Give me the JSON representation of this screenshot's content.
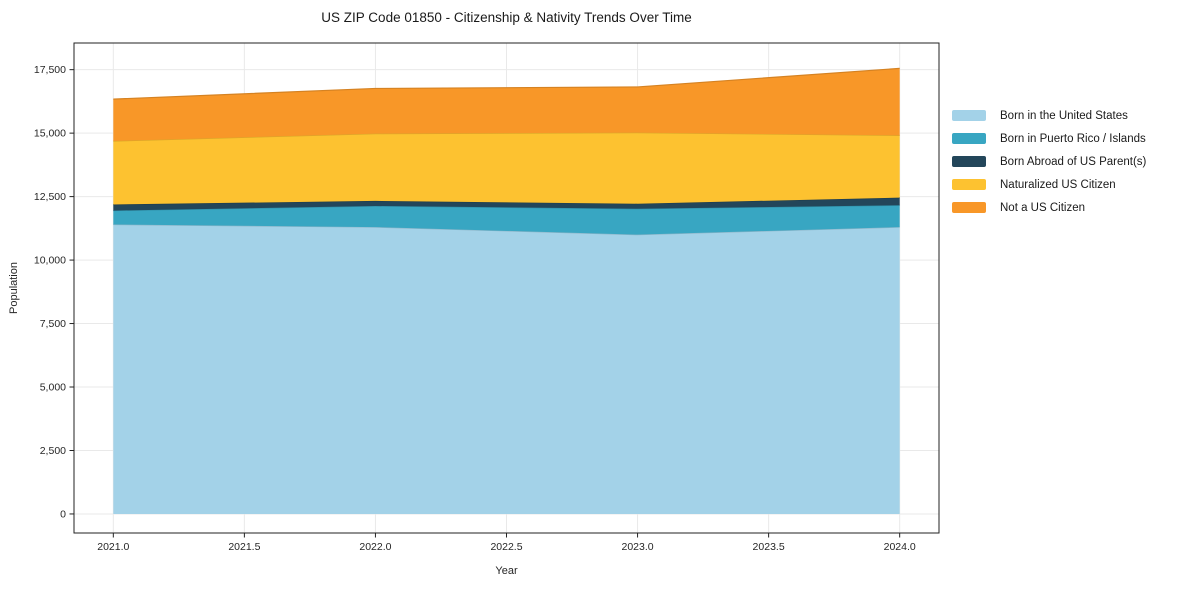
{
  "title": "US ZIP Code 01850 - Citizenship & Nativity Trends Over Time",
  "chart_data": {
    "type": "area",
    "stacked": true,
    "title": "US ZIP Code 01850 - Citizenship & Nativity Trends Over Time",
    "xlabel": "Year",
    "ylabel": "Population",
    "x": [
      2021,
      2022,
      2023,
      2024
    ],
    "series": [
      {
        "name": "Born in the United States",
        "color": "#a3d2e8",
        "values": [
          11400,
          11300,
          11000,
          11300
        ]
      },
      {
        "name": "Born in Puerto Rico / Islands",
        "color": "#38a6c2",
        "values": [
          550,
          830,
          1020,
          860
        ]
      },
      {
        "name": "Born Abroad of US Parent(s)",
        "color": "#23465a",
        "values": [
          240,
          200,
          200,
          300
        ]
      },
      {
        "name": "Naturalized US Citizen",
        "color": "#fdc230",
        "values": [
          2500,
          2650,
          2800,
          2450
        ]
      },
      {
        "name": "Not a US Citizen",
        "color": "#f89728",
        "values": [
          1650,
          1780,
          1800,
          2640
        ]
      }
    ],
    "totals": [
      16340,
      16760,
      16820,
      17550
    ],
    "xlim": [
      2020.85,
      2024.15
    ],
    "ylim": [
      -750,
      18550
    ],
    "xticks": {
      "values": [
        2021,
        2021.5,
        2022,
        2022.5,
        2023,
        2023.5,
        2024
      ],
      "labels": [
        "2021.0",
        "2021.5",
        "2022.0",
        "2022.5",
        "2023.0",
        "2023.5",
        "2024.0"
      ]
    },
    "yticks": {
      "values": [
        0,
        2500,
        5000,
        7500,
        10000,
        12500,
        15000,
        17500
      ],
      "labels": [
        "0",
        "2,500",
        "5,000",
        "7,500",
        "10,000",
        "12,500",
        "15,000",
        "17,500"
      ]
    },
    "grid": true,
    "grid_color": "#e9e9e9",
    "spine_color": "#222222",
    "tick_label_color": "#262626",
    "legend_position": "right-outside"
  }
}
